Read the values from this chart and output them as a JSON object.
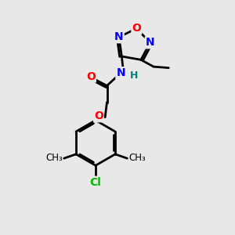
{
  "bg_color": "#e8e8e8",
  "bond_color": "#000000",
  "bond_width": 2.0,
  "atom_colors": {
    "O": "#ff0000",
    "N": "#0000ff",
    "Cl": "#00bb00",
    "C": "#000000",
    "H": "#008080"
  },
  "font_size_atom": 10,
  "font_size_small": 9
}
